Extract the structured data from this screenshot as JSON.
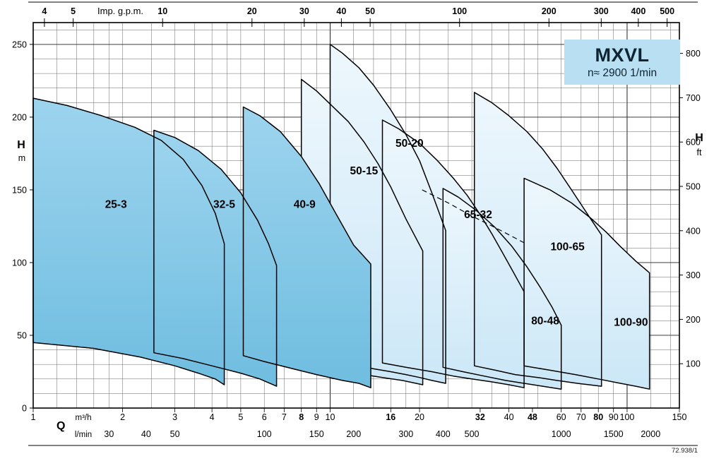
{
  "title_box": {
    "model": "MXVL",
    "speed": "n≈ 2900 1/min"
  },
  "doc_code": "72.938/1",
  "colors": {
    "dark_top": "#9dd4ee",
    "dark_bottom": "#6fbde0",
    "light_top": "#eef7fd",
    "light_bottom": "#cbe7f7",
    "title_bg": "#b9dff3",
    "outline": "#000000",
    "grid_minor": "#666666",
    "grid_major": "#222222"
  },
  "axes": {
    "top": {
      "label": "Imp. g.p.m.",
      "unit_to_m3h": 0.27276,
      "ticks": [
        4,
        5,
        10,
        20,
        30,
        40,
        50,
        100,
        200,
        300,
        400,
        500
      ]
    },
    "bottom_m3h": {
      "label": "Q",
      "unit": "m³/h",
      "ticks": [
        1,
        2,
        3,
        4,
        5,
        6,
        7,
        8,
        9,
        10,
        16,
        20,
        32,
        40,
        48,
        60,
        70,
        80,
        90,
        100,
        150
      ],
      "bold_ticks": [
        8,
        16,
        32,
        48,
        80
      ]
    },
    "bottom_lmin": {
      "unit": "l/min",
      "unit_to_m3h": 0.06,
      "ticks": [
        30,
        40,
        50,
        100,
        150,
        200,
        300,
        400,
        500,
        1000,
        1500,
        2000
      ]
    },
    "left": {
      "label": "H",
      "unit": "m",
      "ticks": [
        0,
        50,
        100,
        150,
        200,
        250
      ]
    },
    "right": {
      "label": "H",
      "unit": "ft",
      "m_per_ft": 0.3048,
      "ticks": [
        100,
        200,
        300,
        400,
        500,
        600,
        700,
        800
      ]
    }
  },
  "chart_data": {
    "type": "area",
    "title": "MXVL multistage pump family coverage chart, n≈2900 1/min",
    "x_axis": {
      "label": "Q",
      "unit": "m³/h",
      "scale": "log",
      "min": 1,
      "max": 150
    },
    "y_axis": {
      "label": "H",
      "unit": "m",
      "scale": "linear",
      "min": 0,
      "max": 265
    },
    "x_gridlines": [
      1,
      1.2,
      1.4,
      1.6,
      1.8,
      2,
      2.5,
      3,
      3.5,
      4,
      4.5,
      5,
      6,
      7,
      8,
      9,
      10,
      12,
      14,
      16,
      18,
      20,
      25,
      30,
      35,
      40,
      45,
      50,
      60,
      70,
      80,
      90,
      100,
      120,
      140,
      150
    ],
    "y_grid_step": 10,
    "y_grid_major_step": 50,
    "series": [
      {
        "name": "25-3",
        "group": "dark",
        "top": [
          [
            1,
            213
          ],
          [
            1.3,
            208
          ],
          [
            1.7,
            201
          ],
          [
            2.2,
            193
          ],
          [
            2.7,
            184
          ],
          [
            3.2,
            171
          ],
          [
            3.7,
            153
          ],
          [
            4.1,
            134
          ],
          [
            4.4,
            113
          ]
        ],
        "bottom": [
          [
            1,
            45
          ],
          [
            1.6,
            41
          ],
          [
            2.3,
            35
          ],
          [
            3,
            29
          ],
          [
            3.6,
            24
          ],
          [
            4.1,
            20
          ],
          [
            4.4,
            16
          ]
        ],
        "label_at": [
          1.9,
          140
        ]
      },
      {
        "name": "32-5",
        "group": "dark",
        "top": [
          [
            2.55,
            191
          ],
          [
            3,
            186
          ],
          [
            3.6,
            177
          ],
          [
            4.3,
            164
          ],
          [
            5,
            148
          ],
          [
            5.7,
            129
          ],
          [
            6.2,
            113
          ],
          [
            6.6,
            98
          ]
        ],
        "bottom": [
          [
            2.55,
            38
          ],
          [
            3.2,
            34
          ],
          [
            4,
            29
          ],
          [
            5,
            24
          ],
          [
            5.8,
            20
          ],
          [
            6.6,
            15
          ]
        ],
        "label_at": [
          4.4,
          140
        ]
      },
      {
        "name": "40-9",
        "group": "dark",
        "top": [
          [
            5.1,
            207
          ],
          [
            5.8,
            201
          ],
          [
            6.8,
            190
          ],
          [
            8,
            173
          ],
          [
            9.2,
            154
          ],
          [
            10.5,
            133
          ],
          [
            12,
            112
          ],
          [
            13.7,
            99
          ]
        ],
        "bottom": [
          [
            5.1,
            36
          ],
          [
            6,
            32
          ],
          [
            7.5,
            27
          ],
          [
            9,
            23
          ],
          [
            11,
            19
          ],
          [
            12.5,
            17
          ],
          [
            13.7,
            14
          ]
        ],
        "label_at": [
          8.2,
          140
        ]
      },
      {
        "name": "50-15",
        "group": "light",
        "top": [
          [
            8,
            226
          ],
          [
            9,
            218
          ],
          [
            10,
            209
          ],
          [
            11.5,
            197
          ],
          [
            13,
            183
          ],
          [
            14.5,
            168
          ],
          [
            16,
            152
          ],
          [
            18,
            130
          ],
          [
            20.5,
            108
          ]
        ],
        "bottom": [
          [
            8,
            32
          ],
          [
            9.5,
            29
          ],
          [
            11,
            26
          ],
          [
            13,
            23
          ],
          [
            15,
            21
          ],
          [
            17.5,
            19
          ],
          [
            20.5,
            16
          ]
        ],
        "label_at": [
          13,
          163
        ]
      },
      {
        "name": "50-20",
        "group": "light",
        "top": [
          [
            10,
            250
          ],
          [
            11,
            244
          ],
          [
            12.5,
            234
          ],
          [
            14,
            222
          ],
          [
            16,
            205
          ],
          [
            18,
            188
          ],
          [
            20,
            170
          ],
          [
            22,
            148
          ],
          [
            24.5,
            122
          ]
        ],
        "bottom": [
          [
            10,
            33
          ],
          [
            12,
            30
          ],
          [
            14,
            27
          ],
          [
            16,
            25
          ],
          [
            18,
            23
          ],
          [
            20,
            21
          ],
          [
            22,
            19
          ],
          [
            24.5,
            17
          ]
        ],
        "label_at": [
          18.5,
          182
        ]
      },
      {
        "name": "65-32",
        "group": "light",
        "top": [
          [
            15,
            198
          ],
          [
            17,
            192
          ],
          [
            20,
            182
          ],
          [
            23,
            170
          ],
          [
            26,
            158
          ],
          [
            29,
            146
          ],
          [
            32,
            133
          ],
          [
            35,
            120
          ],
          [
            38,
            107
          ],
          [
            41,
            95
          ],
          [
            45,
            80
          ]
        ],
        "bottom": [
          [
            15,
            31
          ],
          [
            18,
            28
          ],
          [
            22,
            25
          ],
          [
            26,
            22
          ],
          [
            30,
            20
          ],
          [
            35,
            18
          ],
          [
            40,
            16
          ],
          [
            45,
            14
          ]
        ],
        "label_at": [
          31.5,
          133
        ]
      },
      {
        "name": "80-48",
        "group": "light",
        "top": [
          [
            24,
            151
          ],
          [
            27,
            145
          ],
          [
            31,
            136
          ],
          [
            36,
            124
          ],
          [
            41,
            111
          ],
          [
            46,
            97
          ],
          [
            51,
            83
          ],
          [
            56,
            69
          ],
          [
            60,
            57
          ]
        ],
        "bottom": [
          [
            24,
            28
          ],
          [
            28,
            25
          ],
          [
            33,
            22
          ],
          [
            39,
            19
          ],
          [
            45,
            17
          ],
          [
            52,
            15
          ],
          [
            60,
            13
          ]
        ],
        "label_at": [
          53,
          60
        ]
      },
      {
        "name": "100-65",
        "group": "light",
        "top": [
          [
            30.6,
            217
          ],
          [
            35,
            210
          ],
          [
            40,
            201
          ],
          [
            46,
            190
          ],
          [
            52,
            178
          ],
          [
            58,
            165
          ],
          [
            64,
            152
          ],
          [
            70,
            140
          ],
          [
            76,
            129
          ],
          [
            82,
            119
          ]
        ],
        "bottom": [
          [
            30.6,
            29
          ],
          [
            36,
            26
          ],
          [
            42,
            23
          ],
          [
            50,
            21
          ],
          [
            58,
            19
          ],
          [
            68,
            17
          ],
          [
            82,
            15
          ]
        ],
        "label_at": [
          63,
          111
        ]
      },
      {
        "name": "100-90",
        "group": "light",
        "top": [
          [
            45,
            158
          ],
          [
            55,
            150
          ],
          [
            65,
            141
          ],
          [
            75,
            131
          ],
          [
            85,
            121
          ],
          [
            95,
            111
          ],
          [
            107,
            101
          ],
          [
            119,
            93
          ]
        ],
        "bottom": [
          [
            45,
            29
          ],
          [
            55,
            26
          ],
          [
            67,
            23
          ],
          [
            80,
            20
          ],
          [
            95,
            17
          ],
          [
            107,
            15
          ],
          [
            119,
            13
          ]
        ],
        "label_at": [
          103,
          59
        ]
      }
    ],
    "dashed_boundary": [
      [
        20.4,
        150
      ],
      [
        25,
        141
      ],
      [
        30,
        132
      ],
      [
        36,
        124
      ],
      [
        41,
        118
      ],
      [
        45.6,
        113
      ]
    ]
  }
}
